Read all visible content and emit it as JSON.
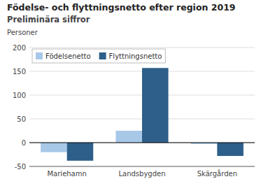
{
  "chart_data": {
    "type": "bar",
    "title": "Födelse- och flyttningsnetto efter region 2019",
    "subtitle": "Preliminära siffror",
    "ylabel": "Personer",
    "categories": [
      "Mariehamn",
      "Landsbygden",
      "Skärgården"
    ],
    "series": [
      {
        "name": "Födelsenetto",
        "color": "#a8c8e8",
        "values": [
          -20,
          25,
          -3
        ]
      },
      {
        "name": "Flyttningsnetto",
        "color": "#2e5f8a",
        "values": [
          -38,
          157,
          -28
        ]
      }
    ],
    "ylim": [
      -50,
      200
    ],
    "yticks": [
      -50,
      0,
      50,
      100,
      150,
      200
    ],
    "grid": true,
    "legend": "upper left"
  }
}
